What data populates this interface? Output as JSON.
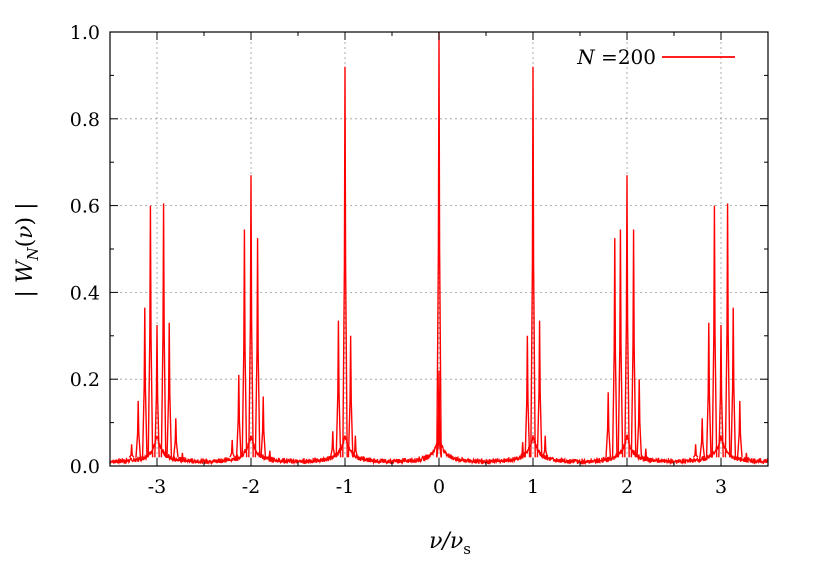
{
  "chart_data": {
    "type": "line",
    "xlabel": "ν/ν_s",
    "ylabel": "| W_N(ν) |",
    "xlim": [
      -3.5,
      3.5
    ],
    "ylim": [
      0.0,
      1.0
    ],
    "grid": true,
    "legend_position": "top-right",
    "xticks": [
      -3,
      -2,
      -1,
      0,
      1,
      2,
      3
    ],
    "xtick_labels": [
      "-3",
      "-2",
      "-1",
      "0",
      "1",
      "2",
      "3"
    ],
    "yticks": [
      0.0,
      0.2,
      0.4,
      0.6,
      0.8,
      1.0
    ],
    "ytick_labels": [
      "0.0",
      "0.2",
      "0.4",
      "0.6",
      "0.8",
      "1.0"
    ],
    "series": [
      {
        "name": "N =200",
        "color": "#ff0000",
        "peaks": [
          {
            "x": 0.0,
            "y": 1.0
          },
          {
            "x": 0.0,
            "y": 0.22
          },
          {
            "x": 0.0,
            "y": 0.1
          },
          {
            "x": -1.0,
            "y": 0.92
          },
          {
            "x": -1.07,
            "y": 0.335
          },
          {
            "x": -0.94,
            "y": 0.3
          },
          {
            "x": -1.13,
            "y": 0.08
          },
          {
            "x": -0.89,
            "y": 0.07
          },
          {
            "x": 1.0,
            "y": 0.92
          },
          {
            "x": 1.07,
            "y": 0.335
          },
          {
            "x": 0.94,
            "y": 0.3
          },
          {
            "x": 0.89,
            "y": 0.055
          },
          {
            "x": 1.13,
            "y": 0.07
          },
          {
            "x": -2.0,
            "y": 0.67
          },
          {
            "x": -2.07,
            "y": 0.545
          },
          {
            "x": -1.93,
            "y": 0.525
          },
          {
            "x": -2.13,
            "y": 0.21
          },
          {
            "x": -1.87,
            "y": 0.16
          },
          {
            "x": -2.2,
            "y": 0.06
          },
          {
            "x": -1.8,
            "y": 0.035
          },
          {
            "x": 2.0,
            "y": 0.67
          },
          {
            "x": 1.93,
            "y": 0.545
          },
          {
            "x": 2.07,
            "y": 0.545
          },
          {
            "x": 1.87,
            "y": 0.525
          },
          {
            "x": 2.13,
            "y": 0.2
          },
          {
            "x": 1.8,
            "y": 0.17
          },
          {
            "x": 2.2,
            "y": 0.04
          },
          {
            "x": -2.93,
            "y": 0.605
          },
          {
            "x": -3.07,
            "y": 0.6
          },
          {
            "x": -3.13,
            "y": 0.365
          },
          {
            "x": -3.0,
            "y": 0.325
          },
          {
            "x": -2.87,
            "y": 0.33
          },
          {
            "x": -3.2,
            "y": 0.15
          },
          {
            "x": -2.8,
            "y": 0.11
          },
          {
            "x": -3.27,
            "y": 0.05
          },
          {
            "x": -2.73,
            "y": 0.03
          },
          {
            "x": 2.93,
            "y": 0.6
          },
          {
            "x": 3.07,
            "y": 0.605
          },
          {
            "x": 3.13,
            "y": 0.365
          },
          {
            "x": 3.0,
            "y": 0.325
          },
          {
            "x": 2.87,
            "y": 0.33
          },
          {
            "x": 3.2,
            "y": 0.15
          },
          {
            "x": 2.8,
            "y": 0.11
          },
          {
            "x": 3.27,
            "y": 0.03
          },
          {
            "x": 2.73,
            "y": 0.05
          }
        ]
      }
    ]
  }
}
